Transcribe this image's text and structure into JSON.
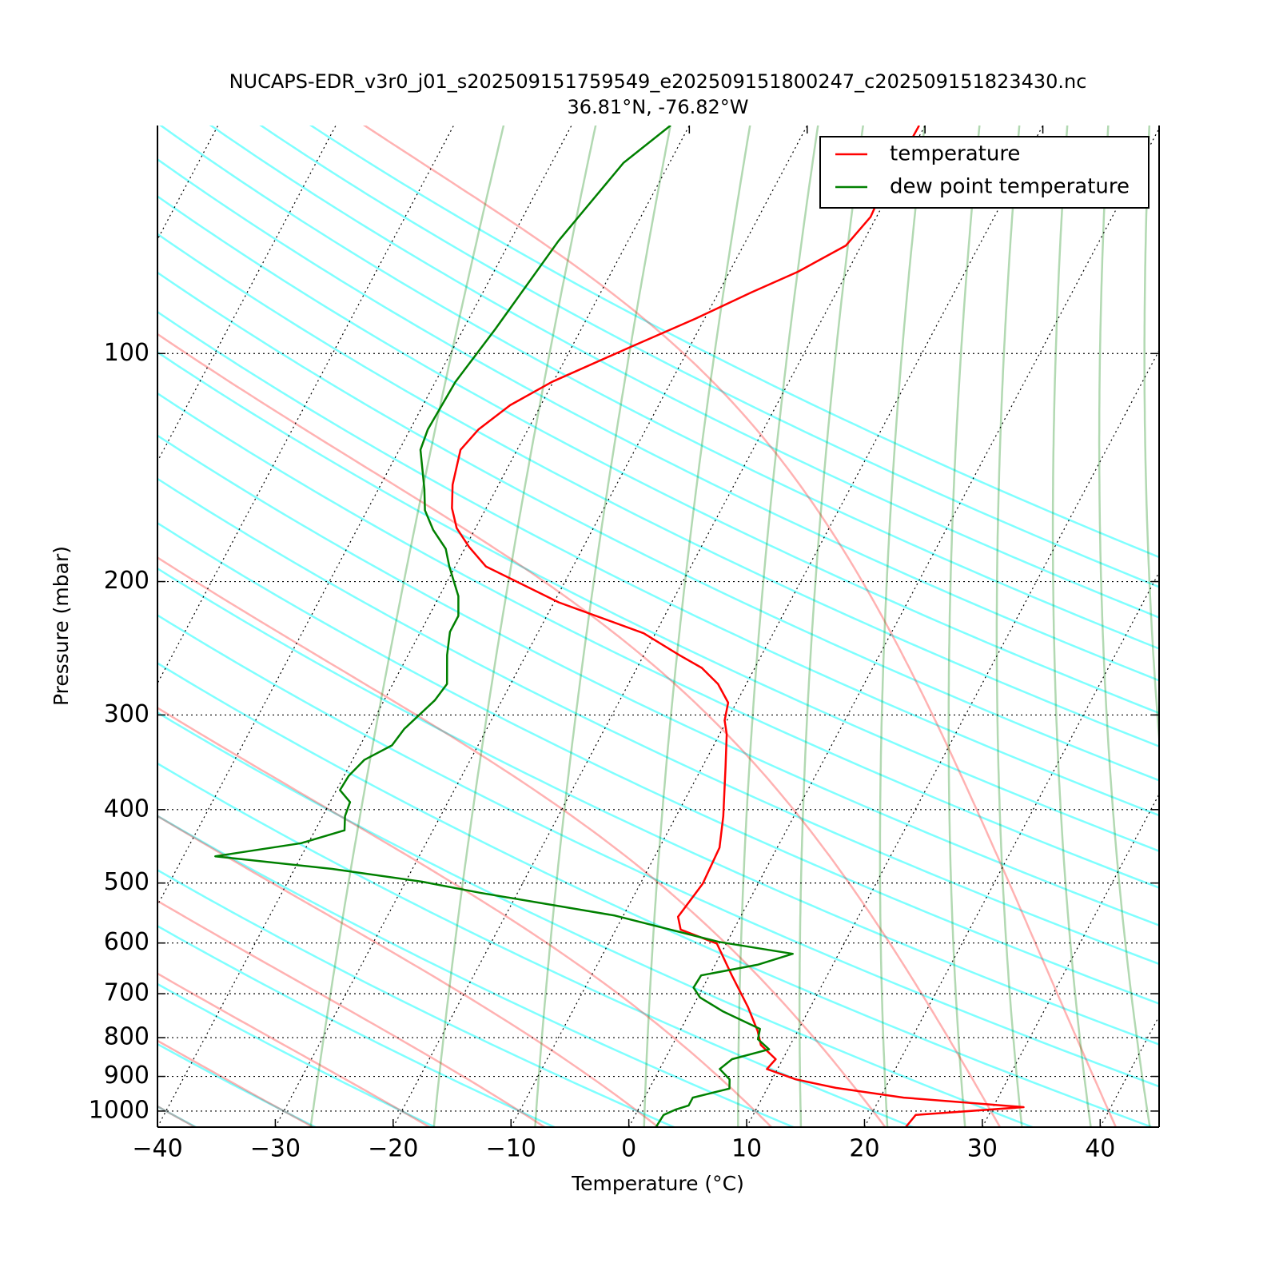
{
  "chart_data": {
    "type": "skewt",
    "title": "NUCAPS-EDR_v3r0_j01_s202509151759549_e202509151800247_c202509151823430.nc",
    "subtitle": "36.81°N, -76.82°W",
    "x_label": "Temperature (°C)",
    "y_label": "Pressure (mbar)",
    "xlim": [
      -40,
      45
    ],
    "ylim": [
      1050,
      50
    ],
    "y_log": true,
    "grid": true,
    "legend": "upper right",
    "xticks": [
      {
        "value": -40,
        "label": "−40"
      },
      {
        "value": -30,
        "label": "−30"
      },
      {
        "value": -20,
        "label": "−20"
      },
      {
        "value": -10,
        "label": "−10"
      },
      0,
      10,
      20,
      30,
      40
    ],
    "yticks": [
      100,
      200,
      300,
      400,
      500,
      600,
      700,
      800,
      900,
      1000
    ],
    "series": [
      {
        "name": "temperature",
        "color": "#ff0000",
        "x": [
          23.5,
          23.8,
          32.6,
          22.0,
          15.8,
          12.0,
          9.1,
          9.4,
          7.5,
          6.6,
          4.7,
          1.9,
          -0.8,
          -4.5,
          -5.3,
          -4.7,
          -4.9,
          -6.0,
          -8.0,
          -9.4,
          -10.2,
          -10.7,
          -12.4,
          -14.5,
          -17.0,
          -21.0,
          -29.6,
          -37.4,
          -39.7,
          -41.6,
          -42.9,
          -43.9,
          -44.8,
          -44.2,
          -42.6,
          -40.1,
          -35.0,
          -30.8,
          -27.2,
          -24.2,
          -21.3,
          -20.5,
          -20.6,
          -20.5
        ],
        "y": [
          1050,
          1012,
          988,
          960,
          932,
          908,
          880,
          854,
          818,
          784,
          729,
          662,
          601,
          576,
          554,
          501,
          449,
          408,
          352,
          318,
          305,
          289,
          273,
          260,
          250,
          234,
          213,
          191,
          180,
          170,
          160,
          149,
          134,
          126,
          117,
          109,
          98,
          90,
          83,
          78,
          72,
          66,
          63,
          50
        ]
      },
      {
        "name": "dew point temperature",
        "color": "#008000",
        "x": [
          2.3,
          2.4,
          3.2,
          4.1,
          4.1,
          6.8,
          6.4,
          5.1,
          5.7,
          8.4,
          7.0,
          6.7,
          2.8,
          0.2,
          -0.8,
          -0.7,
          3.6,
          6.1,
          -0.7,
          -10.7,
          -23.2,
          -28.6,
          -36.8,
          -47.3,
          -40.6,
          -37.5,
          -38.1,
          -38.3,
          -39.7,
          -39.6,
          -39.0,
          -37.3,
          -37.0,
          -35.7,
          -35.4,
          -36.7,
          -37.5,
          -37.5,
          -38.4,
          -40.5,
          -41.6,
          -43.5,
          -45.1,
          -46.1,
          -48.2,
          -48.5,
          -48.3,
          -47.3,
          -45.9,
          -43.9,
          -41.6
        ],
        "y": [
          1050,
          1012,
          995,
          983,
          960,
          934,
          908,
          880,
          854,
          829,
          804,
          779,
          739,
          708,
          687,
          662,
          641,
          620,
          598,
          552,
          515,
          498,
          479,
          461,
          443,
          426,
          408,
          391,
          377,
          361,
          344,
          329,
          313,
          287,
          273,
          250,
          233,
          222,
          209,
          191,
          181,
          171,
          161,
          151,
          134,
          126,
          109,
          93,
          71,
          56,
          50
        ]
      }
    ]
  }
}
